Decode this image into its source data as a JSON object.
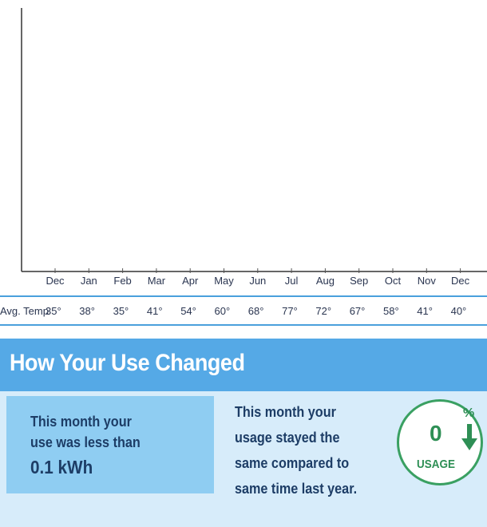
{
  "chart_data": {
    "type": "bar",
    "categories": [
      "Dec",
      "Jan",
      "Feb",
      "Mar",
      "Apr",
      "May",
      "Jun",
      "Jul",
      "Aug",
      "Sep",
      "Oct",
      "Nov",
      "Dec"
    ],
    "values": [
      0,
      0,
      0,
      0,
      0,
      0,
      0,
      0,
      0,
      0,
      0,
      0,
      0
    ],
    "title": "",
    "xlabel": "",
    "ylabel": "",
    "grid": false
  },
  "temperature": {
    "label": "Avg. Temp",
    "values": [
      "35°",
      "38°",
      "35°",
      "41°",
      "54°",
      "60°",
      "68°",
      "77°",
      "72°",
      "67°",
      "58°",
      "41°",
      "40°"
    ]
  },
  "section": {
    "title": "How Your Use Changed"
  },
  "usage_box": {
    "line1": "This month your",
    "line2": "use was less than",
    "amount": "0.1 kWh"
  },
  "comparison": {
    "lines": [
      "This month your",
      "usage stayed the",
      "same compared to",
      "same time last year."
    ]
  },
  "badge": {
    "percent": "0",
    "percent_sign": "%",
    "label": "USAGE",
    "arrow_icon": "arrow-down-icon"
  },
  "colors": {
    "accent_blue": "#55a9e6",
    "panel_bg": "#d7ecfa",
    "usage_box_bg": "#8fcdf2",
    "badge_green": "#3aa062",
    "text_navy": "#1d3d66"
  }
}
